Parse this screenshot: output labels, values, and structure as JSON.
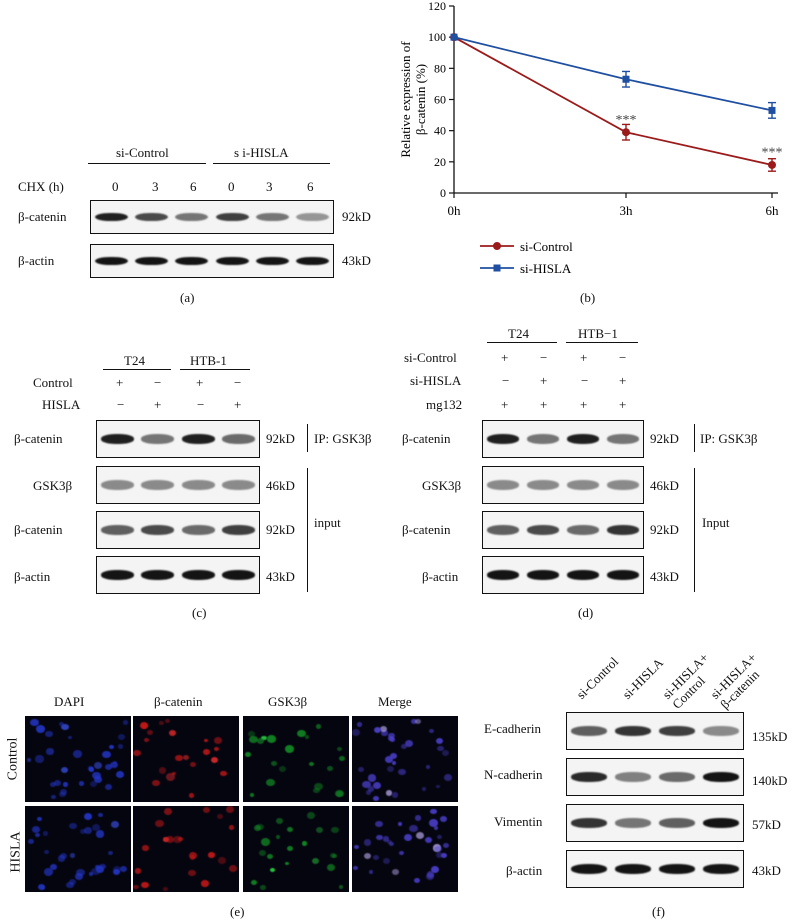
{
  "panel_a": {
    "groups": [
      "si-Control",
      "s i-HISLA"
    ],
    "row_label": "CHX (h)",
    "timepoints": [
      "0",
      "3",
      "6",
      "0",
      "3",
      "6"
    ],
    "blots": [
      {
        "label": "β-catenin",
        "size": "92kD",
        "intensity": [
          0.95,
          0.75,
          0.55,
          0.8,
          0.55,
          0.4
        ]
      },
      {
        "label": "β-actin",
        "size": "43kD",
        "intensity": [
          1,
          1,
          1,
          1,
          1,
          1
        ]
      }
    ],
    "caption": "(a)"
  },
  "panel_b": {
    "caption": "(b)",
    "chart_data": {
      "type": "line",
      "x": [
        "0h",
        "3h",
        "6h"
      ],
      "ylabel": "Relative expression of β-catenin (%)",
      "ylim": [
        0,
        120
      ],
      "yticks": [
        0,
        20,
        40,
        60,
        80,
        100,
        120
      ],
      "series": [
        {
          "name": "si-Control",
          "color": "#9b1b1b",
          "marker": "circle",
          "values": [
            100,
            39,
            18
          ],
          "errors": [
            0,
            5,
            4
          ]
        },
        {
          "name": "si-HISLA",
          "color": "#1f4fa0",
          "marker": "square",
          "values": [
            100,
            73,
            53
          ],
          "errors": [
            0,
            5,
            5
          ]
        }
      ],
      "annotations": [
        {
          "x": "3h",
          "y": 47,
          "text": "***"
        },
        {
          "x": "6h",
          "y": 26,
          "text": "***"
        }
      ],
      "legend_position": "bottom-left"
    }
  },
  "panel_c": {
    "groups": [
      "T24",
      "HTB-1"
    ],
    "conditions": [
      {
        "label": "Control",
        "signs": [
          "+",
          "−",
          "+",
          "−"
        ]
      },
      {
        "label": "HISLA",
        "signs": [
          "−",
          "+",
          "−",
          "+"
        ]
      }
    ],
    "blots": [
      {
        "label": "β-catenin",
        "size": "92kD",
        "intensity": [
          0.95,
          0.55,
          0.95,
          0.6
        ]
      },
      {
        "label": "GSK3β",
        "size": "46kD",
        "intensity": [
          0.45,
          0.45,
          0.45,
          0.45
        ]
      },
      {
        "label": "β-catenin",
        "size": "92kD",
        "intensity": [
          0.65,
          0.75,
          0.6,
          0.8
        ]
      },
      {
        "label": "β-actin",
        "size": "43kD",
        "intensity": [
          1,
          1,
          1,
          1
        ]
      }
    ],
    "ip_label": "IP: GSK3β",
    "input_label": "input",
    "caption": "(c)"
  },
  "panel_d": {
    "groups": [
      "T24",
      "HTB−1"
    ],
    "conditions": [
      {
        "label": "si-Control",
        "signs": [
          "+",
          "−",
          "+",
          "−"
        ]
      },
      {
        "label": "si-HISLA",
        "signs": [
          "−",
          "+",
          "−",
          "+"
        ]
      },
      {
        "label": "mg132",
        "signs": [
          "+",
          "+",
          "+",
          "+"
        ]
      }
    ],
    "blots": [
      {
        "label": "β-catenin",
        "size": "92kD",
        "intensity": [
          0.95,
          0.55,
          0.95,
          0.55
        ]
      },
      {
        "label": "GSK3β",
        "size": "46kD",
        "intensity": [
          0.45,
          0.45,
          0.45,
          0.45
        ]
      },
      {
        "label": "β-catenin",
        "size": "92kD",
        "intensity": [
          0.65,
          0.75,
          0.6,
          0.85
        ]
      },
      {
        "label": "β-actin",
        "size": "43kD",
        "intensity": [
          1,
          1,
          1,
          1
        ]
      }
    ],
    "ip_label": "IP: GSK3β",
    "input_label": "Input",
    "caption": "(d)"
  },
  "panel_e": {
    "columns": [
      "DAPI",
      "β-catenin",
      "GSK3β",
      "Merge"
    ],
    "rows": [
      "Control",
      "HISLA"
    ],
    "caption": "(e)"
  },
  "panel_f": {
    "lanes": [
      "si-Control",
      "si-HISLA",
      "si-HISLA+ Control",
      "si-HISLA+ β-catenin"
    ],
    "blots": [
      {
        "label": "E-cadherin",
        "size": "135kD",
        "intensity": [
          0.65,
          0.85,
          0.8,
          0.45
        ]
      },
      {
        "label": "N-cadherin",
        "size": "140kD",
        "intensity": [
          0.9,
          0.5,
          0.6,
          1
        ]
      },
      {
        "label": "Vimentin",
        "size": "57kD",
        "intensity": [
          0.85,
          0.55,
          0.65,
          1
        ]
      },
      {
        "label": "β-actin",
        "size": "43kD",
        "intensity": [
          1,
          1,
          1,
          1
        ]
      }
    ],
    "caption": "(f)"
  }
}
